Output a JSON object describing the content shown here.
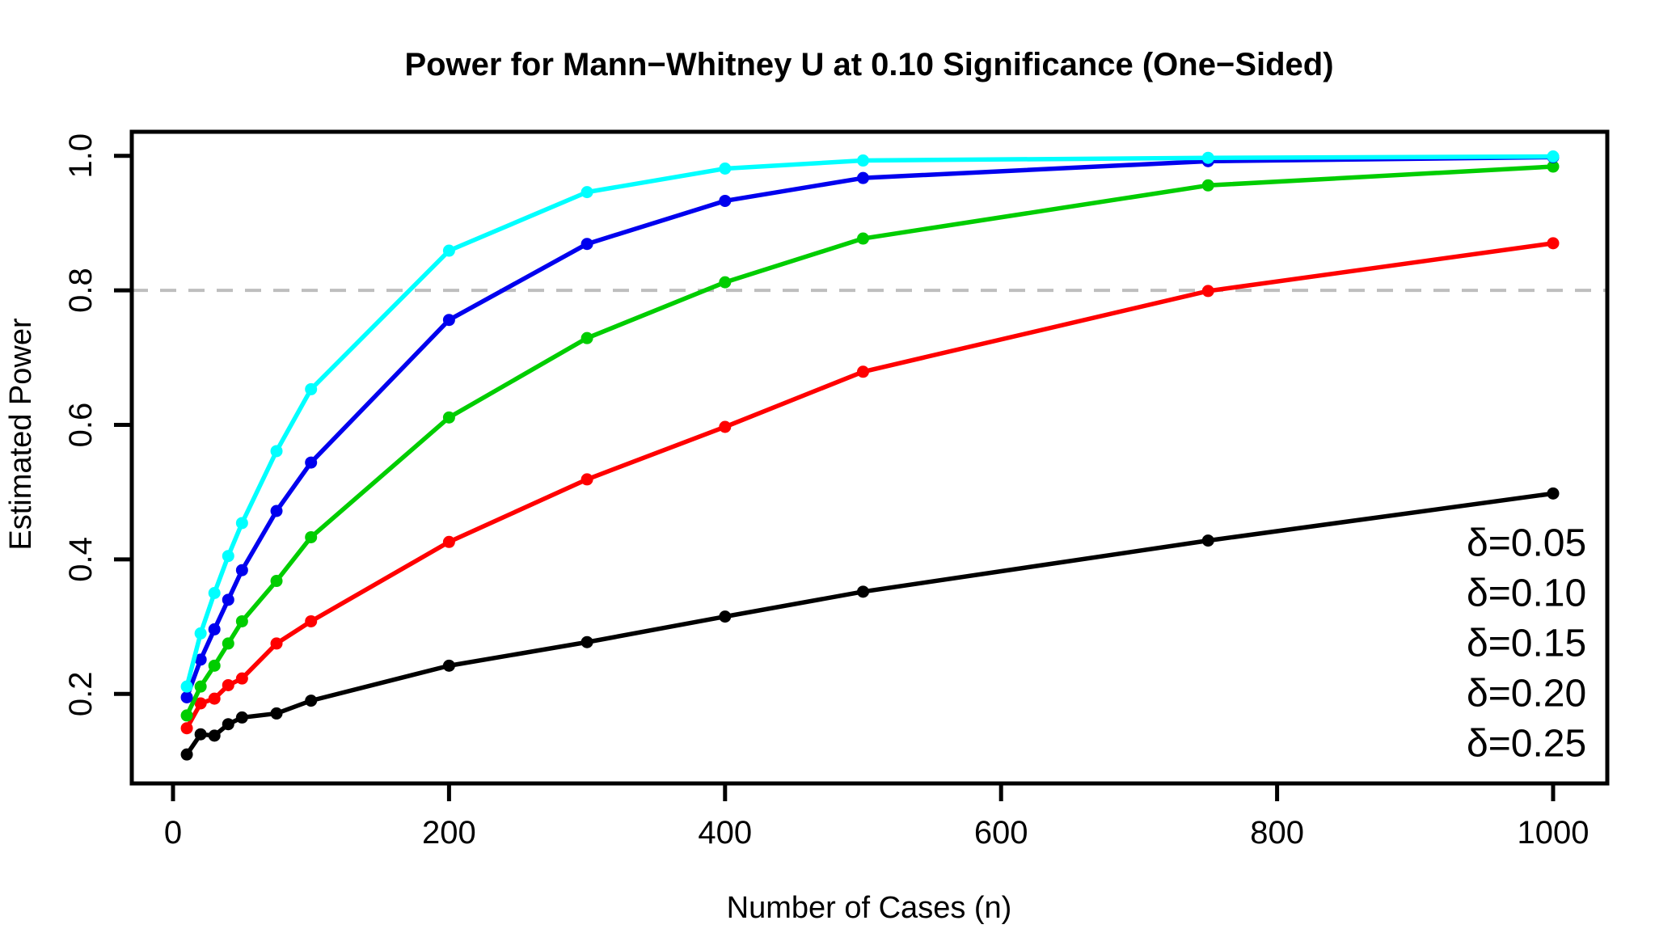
{
  "title": "Power for Mann−Whitney U at 0.10 Significance (One−Sided)",
  "chart_data": {
    "type": "line",
    "title": "Power for Mann−Whitney U at 0.10 Significance (One−Sided)",
    "xlabel": "Number of Cases (n)",
    "ylabel": "Estimated Power",
    "x": [
      10,
      20,
      30,
      40,
      50,
      75,
      100,
      200,
      300,
      400,
      500,
      750,
      1000
    ],
    "series": [
      {
        "name": "δ=0.05",
        "color": "#000000",
        "values": [
          0.11,
          0.14,
          0.138,
          0.155,
          0.165,
          0.171,
          0.19,
          0.242,
          0.277,
          0.315,
          0.352,
          0.428,
          0.498
        ]
      },
      {
        "name": "δ=0.10",
        "color": "#FF0000",
        "values": [
          0.149,
          0.186,
          0.193,
          0.213,
          0.223,
          0.275,
          0.308,
          0.426,
          0.519,
          0.597,
          0.679,
          0.799,
          0.87
        ]
      },
      {
        "name": "δ=0.15",
        "color": "#00CD00",
        "values": [
          0.168,
          0.211,
          0.242,
          0.275,
          0.308,
          0.368,
          0.433,
          0.611,
          0.729,
          0.812,
          0.877,
          0.956,
          0.984
        ]
      },
      {
        "name": "δ=0.20",
        "color": "#0000EE",
        "values": [
          0.195,
          0.251,
          0.296,
          0.34,
          0.384,
          0.472,
          0.544,
          0.756,
          0.869,
          0.933,
          0.967,
          0.992,
          0.998
        ]
      },
      {
        "name": "δ=0.25",
        "color": "#00FFFF",
        "values": [
          0.211,
          0.29,
          0.35,
          0.405,
          0.454,
          0.561,
          0.653,
          0.859,
          0.946,
          0.981,
          0.993,
          0.997,
          0.999
        ]
      }
    ],
    "x_ticks": [
      0,
      200,
      400,
      600,
      800,
      1000
    ],
    "y_ticks": [
      0.2,
      0.4,
      0.6,
      0.8,
      1.0
    ],
    "xlim": [
      -30,
      1039
    ],
    "ylim": [
      0.067,
      1.036
    ],
    "grid": false,
    "reference_line": {
      "y": 0.8,
      "style": "dashed",
      "color": "#BEBEBE"
    },
    "legend_position": "bottom-right",
    "legend_entries": [
      "δ=0.05",
      "δ=0.10",
      "δ=0.15",
      "δ=0.20",
      "δ=0.25"
    ]
  },
  "colors": {
    "background": "#FFFFFF",
    "axis": "#000000",
    "reference": "#BEBEBE"
  }
}
